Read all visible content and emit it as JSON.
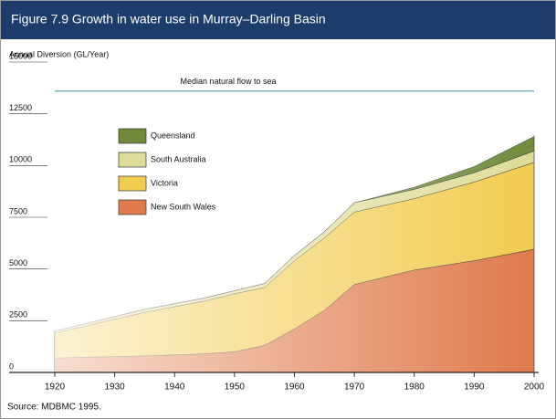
{
  "chart_data": {
    "type": "stacked_area",
    "title": "Figure 7.9  Growth in  water use in Murray–Darling Basin",
    "y_label": "Annual Diversion (GL/Year)",
    "source": "Source: MDBMC 1995.",
    "x": [
      1920,
      1935,
      1945,
      1950,
      1955,
      1960,
      1965,
      1970,
      1980,
      1990,
      2000
    ],
    "series": [
      {
        "name": "New South Wales",
        "color": "#e07a4c",
        "values": [
          700,
          800,
          900,
          1000,
          1300,
          2100,
          3000,
          4250,
          4950,
          5400,
          5950
        ]
      },
      {
        "name": "Victoria",
        "color": "#f2cc50",
        "values": [
          1200,
          2100,
          2550,
          2800,
          2800,
          3300,
          3500,
          3500,
          3450,
          3800,
          4200
        ]
      },
      {
        "name": "South Australia",
        "color": "#dedc98",
        "values": [
          100,
          150,
          150,
          150,
          200,
          250,
          300,
          450,
          450,
          450,
          550
        ]
      },
      {
        "name": "Queensland",
        "color": "#6f8b3a",
        "values": [
          0,
          0,
          0,
          0,
          0,
          0,
          0,
          0,
          100,
          300,
          700
        ]
      }
    ],
    "median_flow": {
      "label": "Median natural flow to sea",
      "value": 13600,
      "color": "#5fa8b0"
    },
    "xlim": [
      1920,
      2000
    ],
    "xticks": [
      1920,
      1930,
      1940,
      1950,
      1960,
      1970,
      1980,
      1990,
      2000
    ],
    "ylim": [
      0,
      15000
    ],
    "yticks": [
      0,
      2500,
      5000,
      7500,
      10000,
      12500,
      15000
    ]
  }
}
